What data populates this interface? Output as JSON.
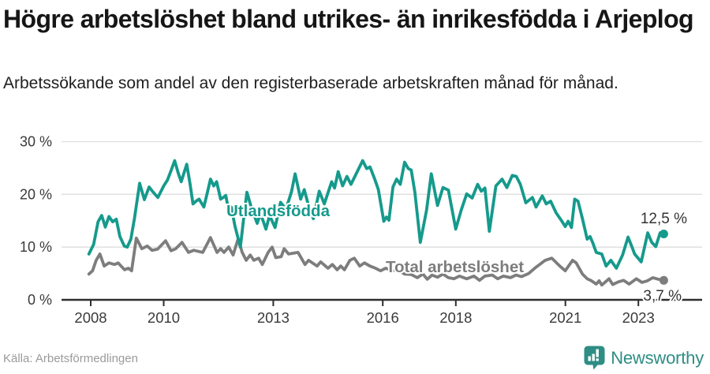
{
  "header": {
    "title": "Högre arbetslöshet bland utrikes- än inrikesfödda i Arjeplog",
    "subtitle": "Arbetssökande som andel av den registerbaserade arbetskraften månad för månad."
  },
  "footer": {
    "source": "Källa: Arbetsförmedlingen",
    "brand": "Newsworthy"
  },
  "chart_data": {
    "type": "line",
    "title": "Högre arbetslöshet bland utrikes- än inrikesfödda i Arjeplog",
    "subtitle": "Arbetssökande som andel av den registerbaserade arbetskraften månad för månad.",
    "xlabel": "",
    "ylabel": "",
    "ylim": [
      0,
      30
    ],
    "xlim": [
      2007.9,
      2024.1
    ],
    "grid": "horizontal",
    "legend_position": "inline-labels",
    "y_ticks": [
      {
        "value": 30,
        "label": "30 %"
      },
      {
        "value": 20,
        "label": "20 %"
      },
      {
        "value": 10,
        "label": "10 %"
      },
      {
        "value": 0,
        "label": "0 %"
      }
    ],
    "x_ticks": [
      {
        "year": 2008,
        "label": "2008"
      },
      {
        "year": 2010,
        "label": "2010"
      },
      {
        "year": 2013,
        "label": "2013"
      },
      {
        "year": 2016,
        "label": "2016"
      },
      {
        "year": 2018,
        "label": "2018"
      },
      {
        "year": 2021,
        "label": "2021"
      },
      {
        "year": 2023,
        "label": "2023"
      }
    ],
    "series": [
      {
        "name": "Utlandsfödda",
        "color": "#159a8c",
        "end_value": 12.5,
        "end_label": "12,5 %",
        "points": [
          [
            2007.95,
            8.7
          ],
          [
            2008.08,
            10.5
          ],
          [
            2008.2,
            14.8
          ],
          [
            2008.3,
            16.0
          ],
          [
            2008.4,
            13.8
          ],
          [
            2008.5,
            15.8
          ],
          [
            2008.6,
            14.8
          ],
          [
            2008.7,
            15.3
          ],
          [
            2008.8,
            12.0
          ],
          [
            2008.92,
            10.2
          ],
          [
            2009.0,
            10.0
          ],
          [
            2009.1,
            11.5
          ],
          [
            2009.2,
            15.5
          ],
          [
            2009.34,
            22.1
          ],
          [
            2009.47,
            19.0
          ],
          [
            2009.6,
            21.4
          ],
          [
            2009.7,
            20.5
          ],
          [
            2009.84,
            19.4
          ],
          [
            2010.0,
            21.6
          ],
          [
            2010.1,
            22.7
          ],
          [
            2010.2,
            24.5
          ],
          [
            2010.3,
            26.4
          ],
          [
            2010.4,
            24.0
          ],
          [
            2010.48,
            22.4
          ],
          [
            2010.63,
            25.7
          ],
          [
            2010.72,
            22.0
          ],
          [
            2010.8,
            18.2
          ],
          [
            2010.9,
            18.8
          ],
          [
            2010.97,
            19.1
          ],
          [
            2011.1,
            17.6
          ],
          [
            2011.2,
            20.5
          ],
          [
            2011.28,
            22.9
          ],
          [
            2011.37,
            21.6
          ],
          [
            2011.45,
            22.4
          ],
          [
            2011.56,
            19.1
          ],
          [
            2011.65,
            19.5
          ],
          [
            2011.7,
            19.8
          ],
          [
            2011.78,
            16.9
          ],
          [
            2011.85,
            17.6
          ],
          [
            2011.95,
            14.0
          ],
          [
            2012.1,
            10.0
          ],
          [
            2012.2,
            16.0
          ],
          [
            2012.28,
            20.4
          ],
          [
            2012.4,
            17.5
          ],
          [
            2012.56,
            14.5
          ],
          [
            2012.65,
            16.4
          ],
          [
            2012.8,
            13.4
          ],
          [
            2012.9,
            16.0
          ],
          [
            2013.05,
            13.7
          ],
          [
            2013.2,
            18.5
          ],
          [
            2013.35,
            17.2
          ],
          [
            2013.5,
            20.5
          ],
          [
            2013.6,
            23.9
          ],
          [
            2013.75,
            19.1
          ],
          [
            2013.85,
            20.9
          ],
          [
            2014.0,
            17.0
          ],
          [
            2014.1,
            15.4
          ],
          [
            2014.26,
            20.6
          ],
          [
            2014.4,
            18.2
          ],
          [
            2014.6,
            22.4
          ],
          [
            2014.68,
            21.2
          ],
          [
            2014.78,
            24.3
          ],
          [
            2014.9,
            21.6
          ],
          [
            2015.02,
            23.4
          ],
          [
            2015.13,
            21.9
          ],
          [
            2015.3,
            24.3
          ],
          [
            2015.45,
            26.4
          ],
          [
            2015.56,
            24.9
          ],
          [
            2015.65,
            25.2
          ],
          [
            2015.78,
            22.9
          ],
          [
            2015.88,
            20.9
          ],
          [
            2016.03,
            14.9
          ],
          [
            2016.1,
            15.7
          ],
          [
            2016.17,
            15.1
          ],
          [
            2016.28,
            21.4
          ],
          [
            2016.38,
            22.9
          ],
          [
            2016.48,
            21.9
          ],
          [
            2016.6,
            26.1
          ],
          [
            2016.7,
            24.9
          ],
          [
            2016.78,
            24.6
          ],
          [
            2016.88,
            20.4
          ],
          [
            2017.03,
            10.9
          ],
          [
            2017.2,
            17.0
          ],
          [
            2017.33,
            23.9
          ],
          [
            2017.5,
            17.9
          ],
          [
            2017.65,
            21.3
          ],
          [
            2017.8,
            20.8
          ],
          [
            2018.0,
            13.4
          ],
          [
            2018.15,
            17.0
          ],
          [
            2018.3,
            20.1
          ],
          [
            2018.45,
            19.3
          ],
          [
            2018.6,
            21.9
          ],
          [
            2018.7,
            20.6
          ],
          [
            2018.8,
            21.2
          ],
          [
            2018.92,
            13.0
          ],
          [
            2019.1,
            21.6
          ],
          [
            2019.27,
            22.9
          ],
          [
            2019.4,
            21.3
          ],
          [
            2019.55,
            23.6
          ],
          [
            2019.66,
            23.4
          ],
          [
            2019.77,
            21.9
          ],
          [
            2019.92,
            18.4
          ],
          [
            2020.1,
            19.4
          ],
          [
            2020.2,
            17.6
          ],
          [
            2020.37,
            19.7
          ],
          [
            2020.48,
            18.2
          ],
          [
            2020.6,
            18.7
          ],
          [
            2020.75,
            16.5
          ],
          [
            2020.9,
            15.0
          ],
          [
            2021.0,
            13.9
          ],
          [
            2021.08,
            14.9
          ],
          [
            2021.17,
            13.7
          ],
          [
            2021.26,
            19.1
          ],
          [
            2021.35,
            18.7
          ],
          [
            2021.47,
            15.4
          ],
          [
            2021.6,
            11.5
          ],
          [
            2021.68,
            12.0
          ],
          [
            2021.75,
            10.9
          ],
          [
            2021.85,
            9.0
          ],
          [
            2022.0,
            8.7
          ],
          [
            2022.12,
            6.4
          ],
          [
            2022.25,
            7.5
          ],
          [
            2022.4,
            6.0
          ],
          [
            2022.57,
            8.5
          ],
          [
            2022.72,
            11.9
          ],
          [
            2022.83,
            10.0
          ],
          [
            2022.9,
            8.7
          ],
          [
            2023.08,
            7.2
          ],
          [
            2023.26,
            12.7
          ],
          [
            2023.37,
            10.9
          ],
          [
            2023.48,
            10.1
          ],
          [
            2023.6,
            12.7
          ],
          [
            2023.7,
            12.5
          ]
        ]
      },
      {
        "name": "Total arbetslöshet",
        "color": "#7d7d7d",
        "end_value": 3.7,
        "end_label": "3,7 %",
        "points": [
          [
            2007.95,
            4.9
          ],
          [
            2008.05,
            5.5
          ],
          [
            2008.15,
            7.5
          ],
          [
            2008.25,
            8.7
          ],
          [
            2008.37,
            6.4
          ],
          [
            2008.5,
            7.0
          ],
          [
            2008.65,
            6.7
          ],
          [
            2008.75,
            7.0
          ],
          [
            2008.93,
            5.7
          ],
          [
            2009.03,
            6.0
          ],
          [
            2009.12,
            5.5
          ],
          [
            2009.25,
            11.7
          ],
          [
            2009.4,
            9.7
          ],
          [
            2009.55,
            10.2
          ],
          [
            2009.68,
            9.4
          ],
          [
            2009.83,
            9.6
          ],
          [
            2010.05,
            11.2
          ],
          [
            2010.2,
            9.3
          ],
          [
            2010.33,
            9.7
          ],
          [
            2010.5,
            10.9
          ],
          [
            2010.68,
            9.0
          ],
          [
            2010.82,
            9.4
          ],
          [
            2011.07,
            9.0
          ],
          [
            2011.28,
            11.8
          ],
          [
            2011.46,
            9.0
          ],
          [
            2011.56,
            9.7
          ],
          [
            2011.65,
            9.0
          ],
          [
            2011.78,
            10.0
          ],
          [
            2011.9,
            8.5
          ],
          [
            2012.04,
            11.6
          ],
          [
            2012.15,
            9.0
          ],
          [
            2012.26,
            7.5
          ],
          [
            2012.37,
            8.5
          ],
          [
            2012.47,
            7.5
          ],
          [
            2012.6,
            7.9
          ],
          [
            2012.7,
            6.7
          ],
          [
            2012.86,
            9.0
          ],
          [
            2012.97,
            10.0
          ],
          [
            2013.07,
            8.0
          ],
          [
            2013.22,
            8.2
          ],
          [
            2013.3,
            9.7
          ],
          [
            2013.42,
            8.7
          ],
          [
            2013.68,
            9.0
          ],
          [
            2013.87,
            6.7
          ],
          [
            2013.97,
            7.5
          ],
          [
            2014.2,
            6.4
          ],
          [
            2014.3,
            7.2
          ],
          [
            2014.5,
            6.0
          ],
          [
            2014.62,
            6.7
          ],
          [
            2014.75,
            5.7
          ],
          [
            2014.85,
            6.4
          ],
          [
            2014.95,
            5.7
          ],
          [
            2015.1,
            7.5
          ],
          [
            2015.22,
            7.9
          ],
          [
            2015.37,
            6.4
          ],
          [
            2015.5,
            7.0
          ],
          [
            2015.65,
            6.4
          ],
          [
            2015.8,
            6.0
          ],
          [
            2015.94,
            5.5
          ],
          [
            2016.08,
            6.0
          ],
          [
            2016.25,
            5.5
          ],
          [
            2016.4,
            5.7
          ],
          [
            2016.6,
            4.9
          ],
          [
            2016.78,
            4.8
          ],
          [
            2016.95,
            4.2
          ],
          [
            2017.1,
            4.9
          ],
          [
            2017.22,
            3.9
          ],
          [
            2017.35,
            4.7
          ],
          [
            2017.5,
            4.3
          ],
          [
            2017.65,
            4.9
          ],
          [
            2017.8,
            4.2
          ],
          [
            2017.95,
            4.0
          ],
          [
            2018.1,
            4.5
          ],
          [
            2018.3,
            4.0
          ],
          [
            2018.5,
            4.5
          ],
          [
            2018.65,
            3.7
          ],
          [
            2018.8,
            4.5
          ],
          [
            2019.0,
            4.7
          ],
          [
            2019.15,
            4.0
          ],
          [
            2019.3,
            4.5
          ],
          [
            2019.5,
            4.2
          ],
          [
            2019.65,
            4.7
          ],
          [
            2019.8,
            4.4
          ],
          [
            2020.0,
            5.0
          ],
          [
            2020.2,
            6.2
          ],
          [
            2020.45,
            7.5
          ],
          [
            2020.63,
            7.9
          ],
          [
            2020.85,
            6.4
          ],
          [
            2021.0,
            5.5
          ],
          [
            2021.2,
            7.5
          ],
          [
            2021.3,
            7.0
          ],
          [
            2021.47,
            4.9
          ],
          [
            2021.6,
            4.0
          ],
          [
            2021.72,
            3.6
          ],
          [
            2021.85,
            3.0
          ],
          [
            2021.93,
            3.6
          ],
          [
            2022.0,
            2.8
          ],
          [
            2022.2,
            4.0
          ],
          [
            2022.3,
            2.9
          ],
          [
            2022.45,
            3.4
          ],
          [
            2022.6,
            3.7
          ],
          [
            2022.75,
            3.0
          ],
          [
            2022.95,
            4.0
          ],
          [
            2023.1,
            3.3
          ],
          [
            2023.25,
            3.6
          ],
          [
            2023.4,
            4.2
          ],
          [
            2023.55,
            3.9
          ],
          [
            2023.7,
            3.7
          ]
        ]
      }
    ]
  }
}
